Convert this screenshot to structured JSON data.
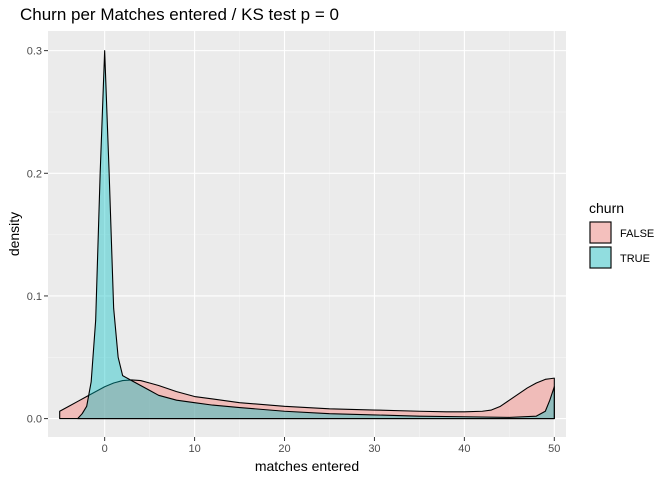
{
  "chart_data": {
    "type": "area",
    "title": "Churn per Matches entered / KS test p = 0",
    "xlabel": "matches entered",
    "ylabel": "density",
    "xlim": [
      -6.3,
      51.3
    ],
    "ylim": [
      -0.015,
      0.316
    ],
    "x_ticks": [
      0,
      10,
      20,
      30,
      40,
      50
    ],
    "x_tick_labels": [
      "0",
      "10",
      "20",
      "30",
      "40",
      "50"
    ],
    "y_ticks": [
      0.0,
      0.1,
      0.2,
      0.3
    ],
    "y_tick_labels": [
      "0.0",
      "0.1",
      "0.2",
      "0.3"
    ],
    "grid": true,
    "legend": {
      "title": "churn",
      "position": "right"
    },
    "series": [
      {
        "name": "FALSE",
        "color": "#f8766d",
        "points": [
          [
            -5,
            0.006
          ],
          [
            -4,
            0.01
          ],
          [
            -3,
            0.014
          ],
          [
            -2,
            0.018
          ],
          [
            -1,
            0.022
          ],
          [
            0,
            0.026
          ],
          [
            1,
            0.029
          ],
          [
            2,
            0.031
          ],
          [
            3,
            0.0315
          ],
          [
            4,
            0.031
          ],
          [
            5,
            0.029
          ],
          [
            6,
            0.027
          ],
          [
            8,
            0.022
          ],
          [
            10,
            0.018
          ],
          [
            12,
            0.016
          ],
          [
            15,
            0.013
          ],
          [
            20,
            0.01
          ],
          [
            25,
            0.008
          ],
          [
            30,
            0.007
          ],
          [
            35,
            0.006
          ],
          [
            38,
            0.0055
          ],
          [
            40,
            0.0055
          ],
          [
            42,
            0.006
          ],
          [
            43,
            0.007
          ],
          [
            44,
            0.01
          ],
          [
            45,
            0.015
          ],
          [
            46,
            0.02
          ],
          [
            47,
            0.025
          ],
          [
            48,
            0.029
          ],
          [
            49,
            0.032
          ],
          [
            49.5,
            0.0325
          ],
          [
            50,
            0.033
          ]
        ]
      },
      {
        "name": "TRUE",
        "color": "#00bfc4",
        "points": [
          [
            -3,
            0.0
          ],
          [
            -2.5,
            0.004
          ],
          [
            -2,
            0.01
          ],
          [
            -1.5,
            0.03
          ],
          [
            -1,
            0.08
          ],
          [
            -0.5,
            0.2
          ],
          [
            0,
            0.3
          ],
          [
            0.5,
            0.2
          ],
          [
            1,
            0.09
          ],
          [
            1.5,
            0.05
          ],
          [
            2,
            0.035
          ],
          [
            3,
            0.031
          ],
          [
            4,
            0.027
          ],
          [
            5,
            0.023
          ],
          [
            6,
            0.019
          ],
          [
            8,
            0.015
          ],
          [
            10,
            0.013
          ],
          [
            12,
            0.011
          ],
          [
            15,
            0.009
          ],
          [
            20,
            0.006
          ],
          [
            25,
            0.004
          ],
          [
            30,
            0.003
          ],
          [
            35,
            0.002
          ],
          [
            40,
            0.0015
          ],
          [
            45,
            0.001
          ],
          [
            48,
            0.002
          ],
          [
            49,
            0.006
          ],
          [
            49.5,
            0.015
          ],
          [
            50,
            0.026
          ]
        ]
      }
    ]
  }
}
